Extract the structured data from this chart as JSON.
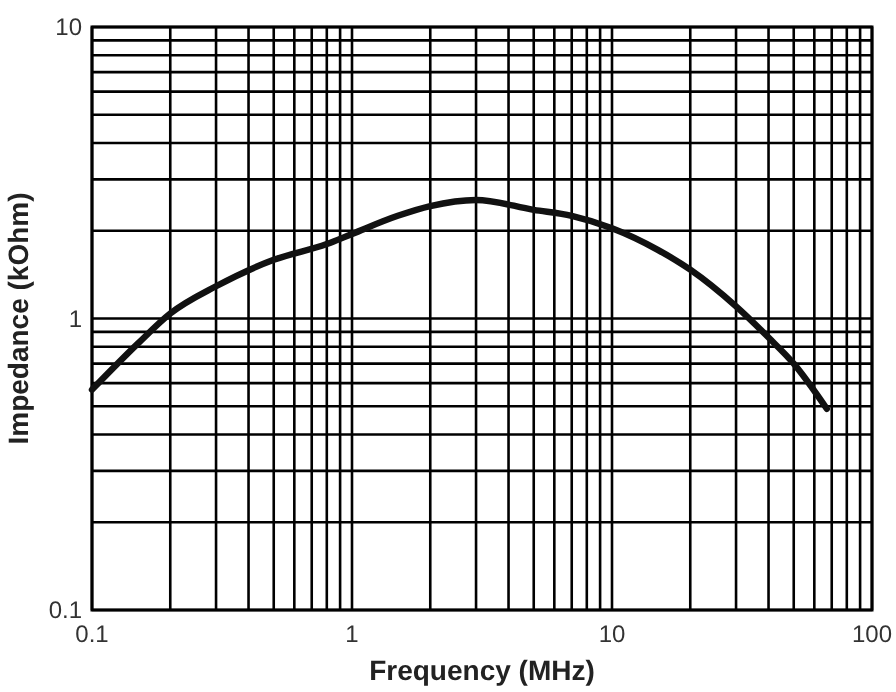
{
  "chart_data": {
    "type": "line",
    "xlabel": "Frequency (MHz)",
    "ylabel": "Impedance (kOhm)",
    "log": "xy",
    "grid": true,
    "marker": "none",
    "line_style": "solid",
    "xlim": [
      0.1,
      100
    ],
    "ylim": [
      0.1,
      10
    ],
    "xticks": [
      0.1,
      {
        "value": 0.2,
        "label": null
      },
      {
        "value": 0.3,
        "label": null
      },
      {
        "value": 0.4,
        "label": null
      },
      {
        "value": 0.5,
        "label": null
      },
      {
        "value": 0.6,
        "label": null
      },
      {
        "value": 0.7,
        "label": null
      },
      {
        "value": 0.8,
        "label": null
      },
      {
        "value": 0.9,
        "label": null
      },
      1,
      {
        "value": 2,
        "label": null
      },
      {
        "value": 3,
        "label": null
      },
      {
        "value": 4,
        "label": null
      },
      {
        "value": 5,
        "label": null
      },
      {
        "value": 6,
        "label": null
      },
      {
        "value": 7,
        "label": null
      },
      {
        "value": 8,
        "label": null
      },
      {
        "value": 9,
        "label": null
      },
      10,
      {
        "value": 20,
        "label": null
      },
      {
        "value": 30,
        "label": null
      },
      {
        "value": 40,
        "label": null
      },
      {
        "value": 50,
        "label": null
      },
      {
        "value": 60,
        "label": null
      },
      {
        "value": 70,
        "label": null
      },
      {
        "value": 80,
        "label": null
      },
      {
        "value": 90,
        "label": null
      },
      100
    ],
    "yticks": [
      0.1,
      {
        "value": 0.2,
        "label": null
      },
      {
        "value": 0.3,
        "label": null
      },
      {
        "value": 0.4,
        "label": null
      },
      {
        "value": 0.5,
        "label": null
      },
      {
        "value": 0.6,
        "label": null
      },
      {
        "value": 0.7,
        "label": null
      },
      {
        "value": 0.8,
        "label": null
      },
      {
        "value": 0.9,
        "label": null
      },
      1,
      {
        "value": 2,
        "label": null
      },
      {
        "value": 3,
        "label": null
      },
      {
        "value": 4,
        "label": null
      },
      {
        "value": 5,
        "label": null
      },
      {
        "value": 6,
        "label": null
      },
      {
        "value": 7,
        "label": null
      },
      {
        "value": 8,
        "label": null
      },
      {
        "value": 9,
        "label": null
      },
      10
    ],
    "x": [
      0.1,
      0.15,
      0.2,
      0.3,
      0.5,
      0.8,
      1,
      1.5,
      2,
      3,
      5,
      7,
      10,
      15,
      20,
      30,
      40,
      50,
      67
    ],
    "series": [
      {
        "color": "#111111",
        "values": [
          0.57,
          0.82,
          1.04,
          1.29,
          1.59,
          1.8,
          1.95,
          2.25,
          2.43,
          2.55,
          2.36,
          2.25,
          2.04,
          1.72,
          1.47,
          1.1,
          0.86,
          0.7,
          0.49
        ]
      }
    ]
  }
}
